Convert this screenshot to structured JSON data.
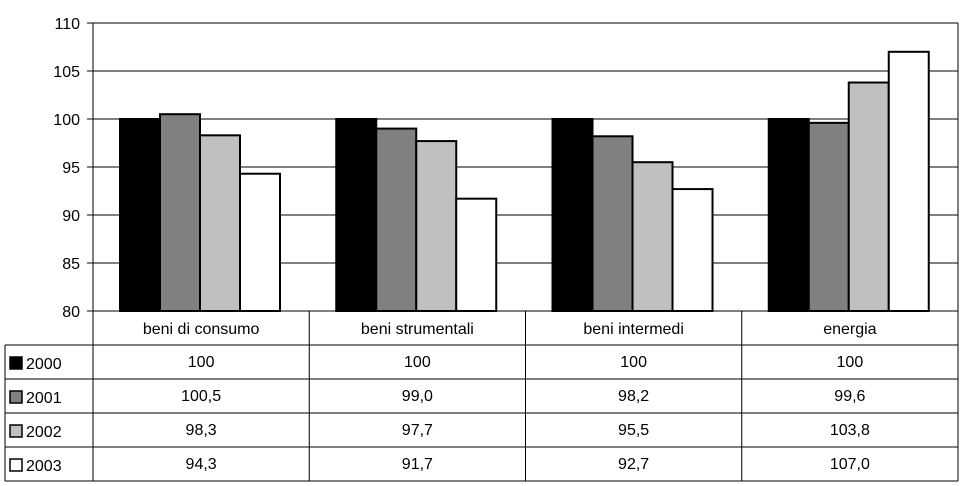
{
  "chart_data": {
    "type": "bar",
    "ylim": [
      80,
      110
    ],
    "yticks": [
      80,
      85,
      90,
      95,
      100,
      105,
      110
    ],
    "categories": [
      "beni di consumo",
      "beni strumentali",
      "beni intermedi",
      "energia"
    ],
    "series": [
      {
        "name": "2000",
        "color": "#000000",
        "values": [
          100,
          100,
          100,
          100
        ],
        "labels": [
          "100",
          "100",
          "100",
          "100"
        ]
      },
      {
        "name": "2001",
        "color": "#808080",
        "values": [
          100.5,
          99.0,
          98.2,
          99.6
        ],
        "labels": [
          "100,5",
          "99,0",
          "98,2",
          "99,6"
        ]
      },
      {
        "name": "2002",
        "color": "#c0c0c0",
        "values": [
          98.3,
          97.7,
          95.5,
          103.8
        ],
        "labels": [
          "98,3",
          "97,7",
          "95,5",
          "103,8"
        ]
      },
      {
        "name": "2003",
        "color": "#ffffff",
        "values": [
          94.3,
          91.7,
          92.7,
          107.0
        ],
        "labels": [
          "94,3",
          "91,7",
          "92,7",
          "107,0"
        ]
      }
    ],
    "grid": true,
    "legend": "data table"
  }
}
